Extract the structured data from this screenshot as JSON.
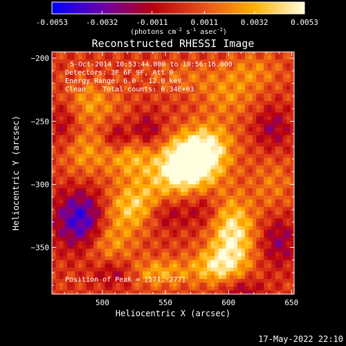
{
  "chart_data": {
    "type": "heatmap",
    "title": "Reconstructed RHESSI Image",
    "xlabel": "Heliocentric X (arcsec)",
    "ylabel": "Heliocentric Y (arcsec)",
    "xlim": [
      460,
      652
    ],
    "ylim": [
      -387,
      -195
    ],
    "x_ticks": [
      500,
      550,
      600,
      650
    ],
    "y_ticks": [
      -200,
      -250,
      -300,
      -350
    ],
    "colorbar": {
      "range": [
        -0.0053,
        0.0053
      ],
      "ticks": [
        -0.0053,
        -0.0032,
        -0.0011,
        0.0011,
        0.0032,
        0.0053
      ],
      "tick_labels": [
        "-0.0053",
        "-0.0032",
        "-0.0011",
        "0.0011",
        "0.0032",
        "0.0053"
      ],
      "colors": [
        "#0000ff",
        "#6a00aa",
        "#b8000e",
        "#e8501a",
        "#ffb000",
        "#ffffe0"
      ]
    },
    "unit_label_parts": [
      "(photons cm",
      "-2",
      " s",
      "-1",
      " asec",
      "-2",
      ")"
    ],
    "info_lines": [
      "5-Oct-2014 10:53:44.000 to 10:56:16.000",
      "Detectors: 3F 6F 9F, Att 0",
      "Energy Range: 6.0 - 12.0 keV",
      "Clean    Total counts: 6.34E+03"
    ],
    "peak_label": "Position of Peak = [571,-277]",
    "peak_position": [
      571,
      -277
    ],
    "features": [
      {
        "x": 570,
        "y": -280,
        "value": 0.0053,
        "sx": 12,
        "sy": 12
      },
      {
        "x": 560,
        "y": -290,
        "value": 0.0038,
        "sx": 20,
        "sy": 14
      },
      {
        "x": 585,
        "y": -270,
        "value": 0.0034,
        "sx": 14,
        "sy": 14
      },
      {
        "x": 530,
        "y": -318,
        "value": 0.004,
        "sx": 18,
        "sy": 12
      },
      {
        "x": 603,
        "y": -340,
        "value": 0.0045,
        "sx": 12,
        "sy": 20
      },
      {
        "x": 590,
        "y": -365,
        "value": 0.0032,
        "sx": 14,
        "sy": 10
      },
      {
        "x": 520,
        "y": -275,
        "value": 0.0026,
        "sx": 14,
        "sy": 14
      },
      {
        "x": 505,
        "y": -345,
        "value": 0.0024,
        "sx": 14,
        "sy": 14
      },
      {
        "x": 545,
        "y": -370,
        "value": 0.0026,
        "sx": 18,
        "sy": 8
      },
      {
        "x": 490,
        "y": -235,
        "value": 0.0022,
        "sx": 16,
        "sy": 12
      },
      {
        "x": 485,
        "y": -275,
        "value": 0.002,
        "sx": 12,
        "sy": 14
      },
      {
        "x": 600,
        "y": -230,
        "value": 0.0018,
        "sx": 16,
        "sy": 12
      },
      {
        "x": 620,
        "y": -210,
        "value": 0.0016,
        "sx": 16,
        "sy": 10
      },
      {
        "x": 565,
        "y": -215,
        "value": 0.0012,
        "sx": 20,
        "sy": 8
      },
      {
        "x": 635,
        "y": -300,
        "value": 0.0014,
        "sx": 12,
        "sy": 16
      },
      {
        "x": 483,
        "y": -328,
        "value": -0.0048,
        "sx": 14,
        "sy": 16
      },
      {
        "x": 548,
        "y": -322,
        "value": -0.0032,
        "sx": 13,
        "sy": 10
      },
      {
        "x": 513,
        "y": -263,
        "value": -0.003,
        "sx": 8,
        "sy": 8
      },
      {
        "x": 535,
        "y": -258,
        "value": -0.0026,
        "sx": 8,
        "sy": 10
      },
      {
        "x": 510,
        "y": -370,
        "value": -0.0022,
        "sx": 12,
        "sy": 8
      },
      {
        "x": 635,
        "y": -255,
        "value": -0.0022,
        "sx": 10,
        "sy": 12
      },
      {
        "x": 640,
        "y": -345,
        "value": -0.0024,
        "sx": 10,
        "sy": 14
      },
      {
        "x": 610,
        "y": -385,
        "value": -0.0022,
        "sx": 12,
        "sy": 8
      },
      {
        "x": 470,
        "y": -250,
        "value": -0.0018,
        "sx": 8,
        "sy": 14
      },
      {
        "x": 580,
        "y": -320,
        "value": -0.0015,
        "sx": 10,
        "sy": 10
      }
    ]
  },
  "footer": {
    "date_stamp": "17-May-2022 22:10"
  }
}
